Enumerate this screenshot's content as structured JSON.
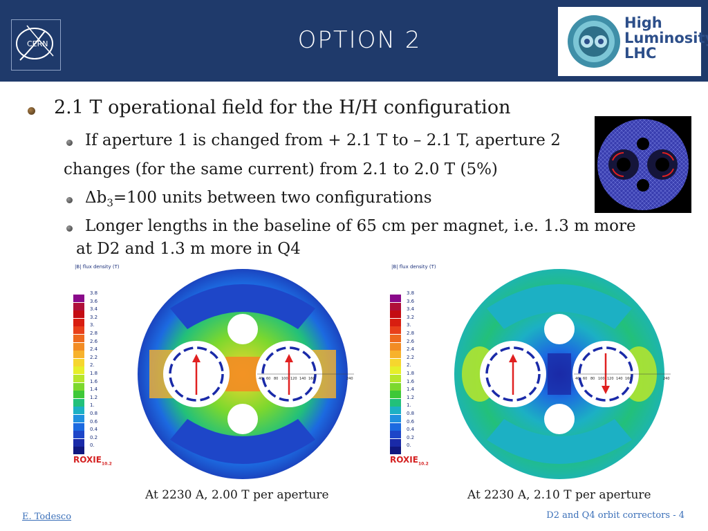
{
  "header": {
    "title": "Option 2",
    "cern_logo_text": "CERN",
    "hl_logo": {
      "line1": "High",
      "line2": "Luminosity",
      "line3": "LHC"
    }
  },
  "bullets": {
    "main": "2.1 T operational field for the H/H configuration",
    "sub1": "If aperture 1 is changed from + 2.1 T to – 2.1 T, aperture 2",
    "sub1_cont": "changes (for the same current) from 2.1 to 2.0 T (5%)",
    "sub2_prefix": "Δb",
    "sub2_sub": "3",
    "sub2_rest": "=100 units between two configurations",
    "sub3_line1": "Longer lengths in the baseline of 65 cm per magnet, i.e. 1.3 m more",
    "sub3_line2": "at D2 and 1.3 m more in Q4"
  },
  "maps": {
    "legend_title": "|B| flux density (T)",
    "scale_ticks": [
      "3.8",
      "3.6",
      "3.4",
      "3.2",
      "3.",
      "2.8",
      "2.6",
      "2.4",
      "2.2",
      "2.",
      "1.8",
      "1.6",
      "1.4",
      "1.2",
      "1.",
      "0.8",
      "0.6",
      "0.4",
      "0.2",
      "0."
    ],
    "scale_colors": [
      "#8a0a8a",
      "#b0103a",
      "#c40c12",
      "#d81e10",
      "#e8401a",
      "#ee6a1e",
      "#f28c24",
      "#f7b22c",
      "#f6d62e",
      "#e6ef2a",
      "#b8e62c",
      "#7cd82e",
      "#3ec838",
      "#22c07a",
      "#1cb0c4",
      "#2090e0",
      "#1c6ae0",
      "#1e46c8",
      "#1a2aa8",
      "#101880"
    ],
    "axis_ticks": [
      "40",
      "60",
      "80",
      "100",
      "120",
      "140",
      "160"
    ],
    "axis_end": "240",
    "roxie_label": "ROXIE",
    "roxie_version": "10.2",
    "left_caption": "At 2230 A, 2.00 T per aperture",
    "right_caption": "At 2230 A, 2.10 T per aperture"
  },
  "footer": {
    "author": "E. Todesco",
    "page": "D2 and Q4 orbit correctors - 4"
  },
  "colors": {
    "header_bg": "#1f3a6b",
    "arrow": "#e02020",
    "coil_ring": "#1a2aa8"
  }
}
